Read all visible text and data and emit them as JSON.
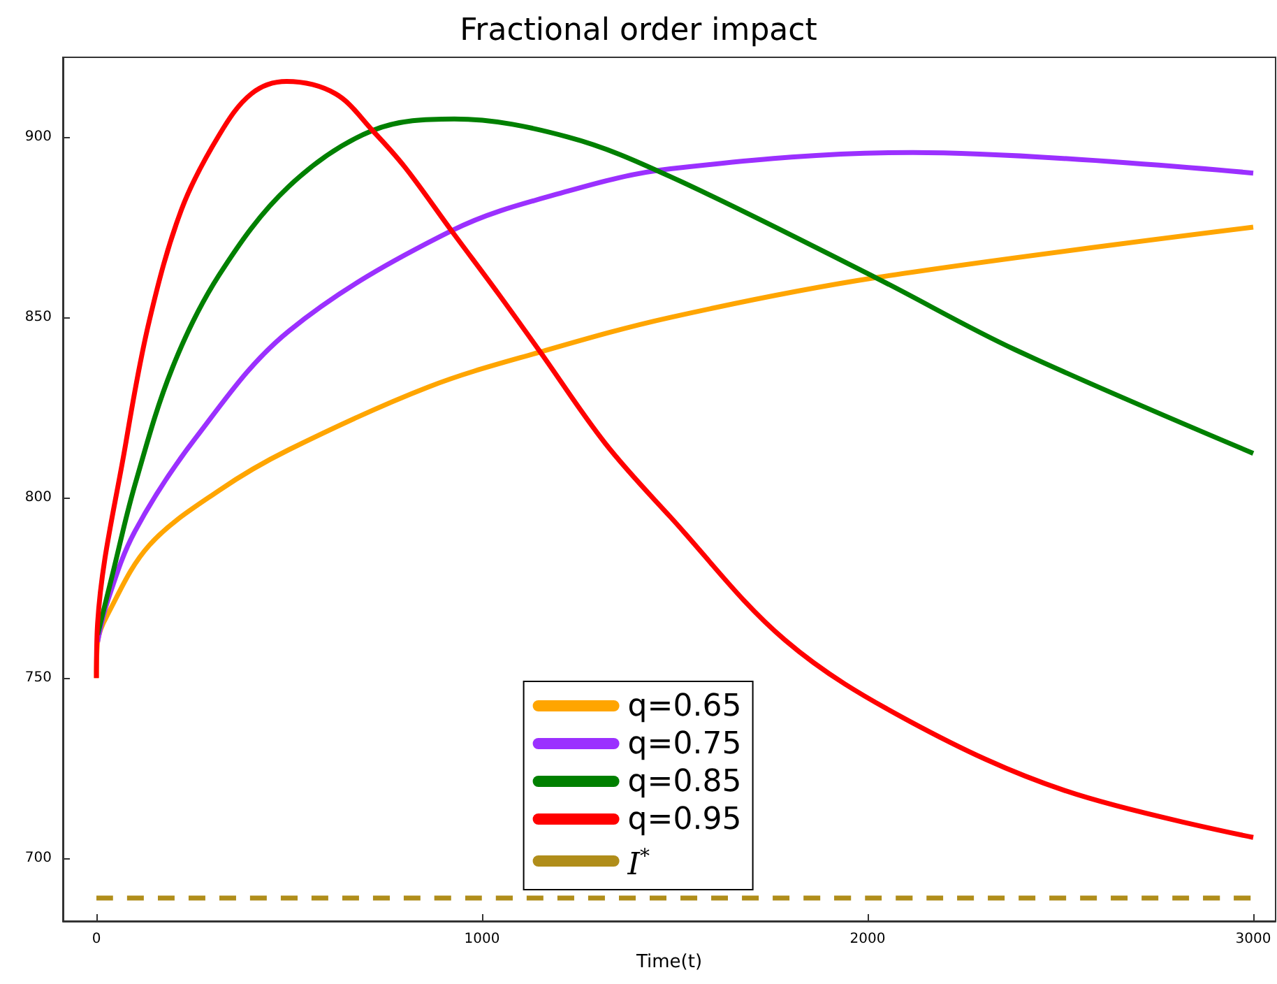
{
  "chart_data": {
    "type": "line",
    "title": "Fractional order impact",
    "xlabel": "Time(t)",
    "xlim": [
      -87,
      3058
    ],
    "ylim": [
      682.6,
      922.1
    ],
    "xticks": [
      0,
      1000,
      2000,
      3000
    ],
    "yticks": [
      700,
      750,
      800,
      850,
      900
    ],
    "grid": false,
    "legend": "bottom",
    "marker": "none",
    "series": [
      {
        "name": "q=0.65",
        "color": "#ffa500",
        "x": [
          0,
          3,
          28,
          137,
          318,
          499,
          861,
          1151,
          1489,
          2021,
          3000
        ],
        "values": [
          750,
          760,
          767.4,
          786.8,
          802,
          813.3,
          830.7,
          840.4,
          850,
          861,
          875
        ]
      },
      {
        "name": "q=0.75",
        "color": "#9b30ff",
        "x": [
          3,
          28,
          100,
          257,
          499,
          921,
          1223,
          1489,
          2117,
          3000
        ],
        "values": [
          760,
          771,
          790.7,
          816.5,
          846.2,
          874,
          885,
          891.2,
          895.7,
          890
        ]
      },
      {
        "name": "q=0.85",
        "color": "#008000",
        "x": [
          3,
          40,
          100,
          197,
          318,
          499,
          716,
          928,
          1223,
          1489,
          2021,
          2383,
          3000
        ],
        "values": [
          762,
          778,
          803.6,
          836,
          861.7,
          886.3,
          901.8,
          905,
          900,
          889,
          861,
          841,
          812.3
        ]
      },
      {
        "name": "q=0.95",
        "color": "#ff0000",
        "x": [
          0,
          3,
          76,
          137,
          221,
          318,
          402,
          493,
          620,
          716,
          801,
          921,
          1042,
          1151,
          1320,
          1489,
          1786,
          2109,
          2511,
          3000
        ],
        "values": [
          750,
          765,
          815,
          849,
          880,
          900.5,
          912,
          915.4,
          912,
          901.8,
          891.5,
          874,
          856.6,
          840.4,
          815,
          794.6,
          760.5,
          738,
          718.8,
          705.8
        ]
      },
      {
        "name": "I$^{*}$",
        "color": "#b08d1a",
        "line_style": "dashed",
        "x": [
          0,
          3000
        ],
        "values": [
          689,
          689
        ]
      }
    ]
  }
}
